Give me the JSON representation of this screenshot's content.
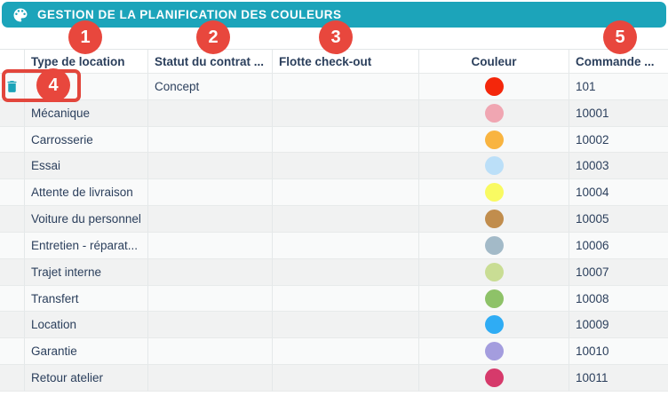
{
  "title_bar": {
    "title": "GESTION DE LA PLANIFICATION DES COULEURS",
    "icon": "palette-icon",
    "background": "#1CA4BA"
  },
  "table": {
    "columns": [
      {
        "id": "actions",
        "label": "",
        "align": "left"
      },
      {
        "id": "type_location",
        "label": "Type de location",
        "align": "left"
      },
      {
        "id": "statut_contrat",
        "label": "Statut du contrat ...",
        "align": "left"
      },
      {
        "id": "flotte_checkout",
        "label": "Flotte check-out",
        "align": "left"
      },
      {
        "id": "couleur",
        "label": "Couleur",
        "align": "center"
      },
      {
        "id": "commande",
        "label": "Commande ...",
        "align": "left"
      }
    ],
    "rows": [
      {
        "type_location": "",
        "statut_contrat": "Concept",
        "flotte_checkout": "",
        "couleur": "#F4270B",
        "commande": "101",
        "delete_icon": true,
        "highlighted": true
      },
      {
        "type_location": "Mécanique",
        "statut_contrat": "",
        "flotte_checkout": "",
        "couleur": "#F0A6B2",
        "commande": "10001",
        "delete_icon": false,
        "highlighted": false
      },
      {
        "type_location": "Carrosserie",
        "statut_contrat": "",
        "flotte_checkout": "",
        "couleur": "#F9B440",
        "commande": "10002",
        "delete_icon": false,
        "highlighted": false
      },
      {
        "type_location": "Essai",
        "statut_contrat": "",
        "flotte_checkout": "",
        "couleur": "#BBDFF8",
        "commande": "10003",
        "delete_icon": false,
        "highlighted": false
      },
      {
        "type_location": "Attente de livraison",
        "statut_contrat": "",
        "flotte_checkout": "",
        "couleur": "#F9FA62",
        "commande": "10004",
        "delete_icon": false,
        "highlighted": false
      },
      {
        "type_location": "Voiture du personnel",
        "statut_contrat": "",
        "flotte_checkout": "",
        "couleur": "#C18D4D",
        "commande": "10005",
        "delete_icon": false,
        "highlighted": false
      },
      {
        "type_location": "Entretien - réparat...",
        "statut_contrat": "",
        "flotte_checkout": "",
        "couleur": "#A3BAC8",
        "commande": "10006",
        "delete_icon": false,
        "highlighted": false
      },
      {
        "type_location": "Trajet interne",
        "statut_contrat": "",
        "flotte_checkout": "",
        "couleur": "#C9DD94",
        "commande": "10007",
        "delete_icon": false,
        "highlighted": false
      },
      {
        "type_location": "Transfert",
        "statut_contrat": "",
        "flotte_checkout": "",
        "couleur": "#8EC268",
        "commande": "10008",
        "delete_icon": false,
        "highlighted": false
      },
      {
        "type_location": "Location",
        "statut_contrat": "",
        "flotte_checkout": "",
        "couleur": "#2FACF4",
        "commande": "10009",
        "delete_icon": false,
        "highlighted": false
      },
      {
        "type_location": "Garantie",
        "statut_contrat": "",
        "flotte_checkout": "",
        "couleur": "#A49DDE",
        "commande": "10010",
        "delete_icon": false,
        "highlighted": false
      },
      {
        "type_location": "Retour atelier",
        "statut_contrat": "",
        "flotte_checkout": "",
        "couleur": "#D63A6B",
        "commande": "10011",
        "delete_icon": false,
        "highlighted": false
      }
    ]
  },
  "annotations": {
    "badges": [
      {
        "label": "1"
      },
      {
        "label": "2"
      },
      {
        "label": "3"
      },
      {
        "label": "4"
      },
      {
        "label": "5"
      }
    ],
    "badge_color": "#E8473D",
    "highlight_box_color": "#E2463C"
  },
  "colors": {
    "accent_teal": "#1CA4BA",
    "trash_icon": "#1BA3B8",
    "table_text": "#2B3F5C"
  }
}
